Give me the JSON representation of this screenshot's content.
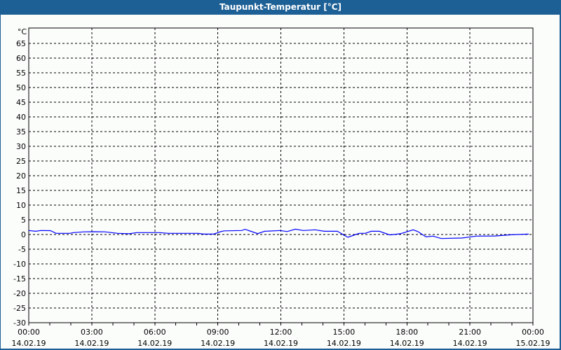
{
  "window": {
    "title": "Taupunkt-Temperatur [°C]"
  },
  "chart_data": {
    "type": "line",
    "title": "Taupunkt-Temperatur [°C]",
    "ylabel": "°C",
    "ylim": [
      -30,
      67
    ],
    "yticks": [
      -30,
      -25,
      -20,
      -15,
      -10,
      -5,
      0,
      5,
      10,
      15,
      20,
      25,
      30,
      35,
      40,
      45,
      50,
      55,
      60,
      65
    ],
    "xlim_hours": [
      0,
      24
    ],
    "xticks": [
      {
        "time": "00:00",
        "date": "14.02.19"
      },
      {
        "time": "03:00",
        "date": "14.02.19"
      },
      {
        "time": "06:00",
        "date": "14.02.19"
      },
      {
        "time": "09:00",
        "date": "14.02.19"
      },
      {
        "time": "12:00",
        "date": "14.02.19"
      },
      {
        "time": "15:00",
        "date": "14.02.19"
      },
      {
        "time": "18:00",
        "date": "14.02.19"
      },
      {
        "time": "21:00",
        "date": "14.02.19"
      },
      {
        "time": "00:00",
        "date": "15.02.19"
      }
    ],
    "grid": true,
    "line_color": "#0000ff",
    "series": [
      {
        "x_hours": [
          0,
          0.33,
          0.57,
          1.03,
          1.3,
          1.97,
          2.13,
          2.63,
          3.13,
          3.63,
          4.23,
          4.8,
          5.13,
          6.23,
          6.63,
          8.07,
          8.3,
          8.8,
          9.13,
          9.3,
          10.13,
          10.3,
          10.53,
          10.9,
          11.23,
          11.97,
          12.3,
          12.69,
          13.07,
          13.63,
          14.07,
          14.69,
          15.19,
          15.73,
          16.02,
          16.3,
          16.69,
          17.19,
          17.69,
          18.3,
          18.52,
          18.91,
          19.24,
          19.63,
          20.63,
          21.3,
          22.19,
          22.97,
          23.8
        ],
        "values": [
          1.35,
          1.1,
          1.35,
          1.3,
          0.4,
          0.4,
          0.65,
          0.9,
          0.95,
          0.9,
          0.4,
          0.25,
          0.65,
          0.65,
          0.4,
          0.4,
          0.15,
          0.15,
          0.95,
          1.25,
          1.35,
          1.75,
          1.2,
          0.3,
          1.1,
          1.35,
          1.0,
          1.8,
          1.35,
          1.6,
          1.1,
          1.1,
          -0.95,
          0.4,
          0.4,
          1.1,
          1.1,
          -0.15,
          0.25,
          1.6,
          1.0,
          -0.8,
          -0.55,
          -1.35,
          -1.2,
          -0.55,
          -0.5,
          -0.1,
          0.15
        ]
      }
    ]
  }
}
